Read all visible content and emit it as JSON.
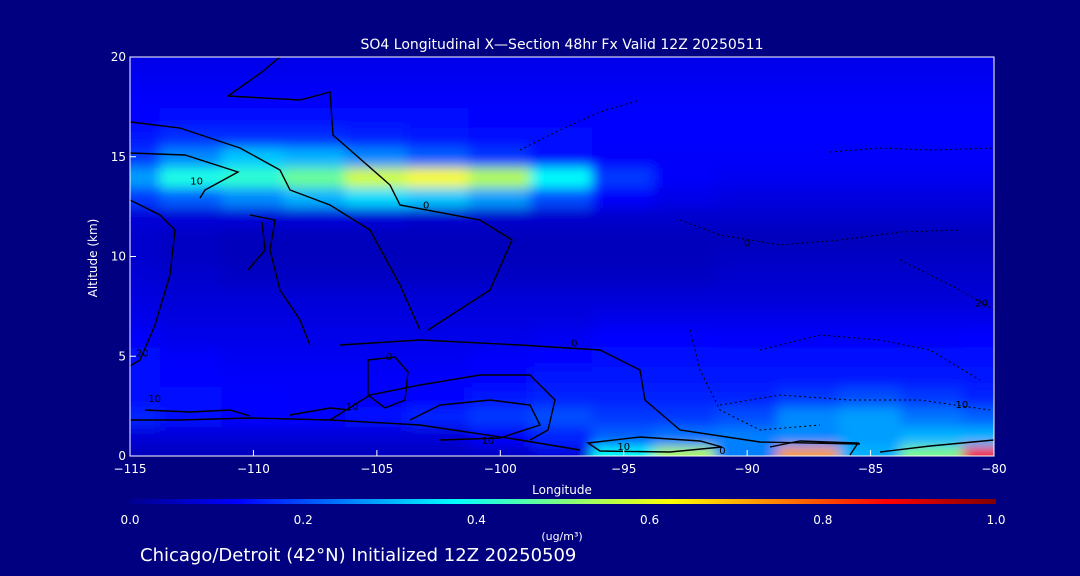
{
  "chart_data": {
    "type": "heatmap",
    "title": "SO4 Longitudinal X—Section 48hr  Fx Valid 12Z 20250511",
    "xlabel": "Longitude",
    "ylabel": "Altitude (km)",
    "xlim": [
      -115,
      -80
    ],
    "ylim": [
      0,
      20
    ],
    "x_ticks": [
      -115,
      -110,
      -105,
      -100,
      -95,
      -90,
      -85,
      -80
    ],
    "y_ticks": [
      0,
      5,
      10,
      15,
      20
    ],
    "colorbar": {
      "range": [
        0.0,
        1.0
      ],
      "ticks": [
        "0.0",
        "0.2",
        "0.4",
        "0.6",
        "0.8",
        "1.0"
      ],
      "units": "(ug/m³)"
    },
    "x": [
      -115,
      -112.5,
      -110,
      -107.5,
      -105,
      -102.5,
      -100,
      -97.5,
      -95,
      -92.5,
      -90,
      -87.5,
      -85,
      -82.5,
      -80
    ],
    "y": [
      0,
      1,
      2,
      3,
      4,
      5,
      6,
      7,
      8,
      9,
      10,
      11,
      12,
      13,
      14,
      15,
      16,
      17,
      18,
      19,
      20
    ],
    "z": [
      [
        0.05,
        0.05,
        0.05,
        0.05,
        0.05,
        0.05,
        0.05,
        0.08,
        0.38,
        0.55,
        0.25,
        0.72,
        0.3,
        0.5,
        0.88
      ],
      [
        0.08,
        0.08,
        0.08,
        0.08,
        0.08,
        0.08,
        0.12,
        0.16,
        0.22,
        0.24,
        0.25,
        0.26,
        0.28,
        0.3,
        0.3
      ],
      [
        0.16,
        0.14,
        0.13,
        0.13,
        0.14,
        0.16,
        0.18,
        0.2,
        0.18,
        0.18,
        0.2,
        0.26,
        0.28,
        0.24,
        0.22
      ],
      [
        0.14,
        0.14,
        0.13,
        0.12,
        0.12,
        0.13,
        0.15,
        0.16,
        0.16,
        0.16,
        0.16,
        0.18,
        0.2,
        0.18,
        0.16
      ],
      [
        0.14,
        0.13,
        0.12,
        0.12,
        0.12,
        0.12,
        0.13,
        0.15,
        0.15,
        0.15,
        0.15,
        0.15,
        0.15,
        0.15,
        0.15
      ],
      [
        0.14,
        0.12,
        0.11,
        0.11,
        0.11,
        0.11,
        0.12,
        0.13,
        0.14,
        0.14,
        0.14,
        0.14,
        0.14,
        0.14,
        0.14
      ],
      [
        0.12,
        0.1,
        0.1,
        0.1,
        0.1,
        0.1,
        0.1,
        0.11,
        0.13,
        0.13,
        0.12,
        0.12,
        0.12,
        0.12,
        0.13
      ],
      [
        0.1,
        0.09,
        0.09,
        0.09,
        0.09,
        0.09,
        0.09,
        0.09,
        0.1,
        0.1,
        0.1,
        0.1,
        0.1,
        0.1,
        0.1
      ],
      [
        0.09,
        0.08,
        0.08,
        0.08,
        0.08,
        0.08,
        0.08,
        0.08,
        0.08,
        0.08,
        0.08,
        0.08,
        0.08,
        0.08,
        0.08
      ],
      [
        0.08,
        0.07,
        0.06,
        0.06,
        0.06,
        0.06,
        0.06,
        0.06,
        0.06,
        0.06,
        0.07,
        0.07,
        0.07,
        0.07,
        0.07
      ],
      [
        0.07,
        0.06,
        0.05,
        0.05,
        0.05,
        0.05,
        0.05,
        0.05,
        0.05,
        0.05,
        0.06,
        0.06,
        0.06,
        0.06,
        0.06
      ],
      [
        0.07,
        0.06,
        0.05,
        0.05,
        0.05,
        0.05,
        0.05,
        0.05,
        0.05,
        0.05,
        0.05,
        0.05,
        0.05,
        0.05,
        0.05
      ],
      [
        0.08,
        0.08,
        0.08,
        0.08,
        0.08,
        0.07,
        0.07,
        0.07,
        0.07,
        0.07,
        0.07,
        0.07,
        0.07,
        0.07,
        0.07
      ],
      [
        0.18,
        0.22,
        0.26,
        0.3,
        0.34,
        0.32,
        0.28,
        0.2,
        0.12,
        0.1,
        0.09,
        0.09,
        0.09,
        0.09,
        0.09
      ],
      [
        0.28,
        0.4,
        0.42,
        0.48,
        0.58,
        0.62,
        0.55,
        0.38,
        0.18,
        0.12,
        0.11,
        0.11,
        0.11,
        0.11,
        0.11
      ],
      [
        0.18,
        0.26,
        0.32,
        0.3,
        0.26,
        0.22,
        0.18,
        0.14,
        0.12,
        0.12,
        0.12,
        0.12,
        0.12,
        0.12,
        0.12
      ],
      [
        0.15,
        0.17,
        0.17,
        0.17,
        0.16,
        0.15,
        0.14,
        0.14,
        0.13,
        0.13,
        0.13,
        0.13,
        0.13,
        0.13,
        0.13
      ],
      [
        0.13,
        0.14,
        0.14,
        0.14,
        0.14,
        0.14,
        0.13,
        0.13,
        0.13,
        0.13,
        0.13,
        0.13,
        0.13,
        0.13,
        0.13
      ],
      [
        0.12,
        0.12,
        0.12,
        0.12,
        0.12,
        0.12,
        0.12,
        0.12,
        0.12,
        0.12,
        0.12,
        0.12,
        0.12,
        0.12,
        0.12
      ],
      [
        0.11,
        0.11,
        0.11,
        0.11,
        0.11,
        0.11,
        0.11,
        0.11,
        0.11,
        0.11,
        0.11,
        0.11,
        0.11,
        0.11,
        0.11
      ],
      [
        0.1,
        0.1,
        0.1,
        0.1,
        0.1,
        0.1,
        0.1,
        0.1,
        0.1,
        0.1,
        0.1,
        0.1,
        0.1,
        0.1,
        0.1
      ]
    ],
    "contour_labels": [
      {
        "text": "10",
        "x": -112.3,
        "y": 13.6
      },
      {
        "text": "0",
        "x": -103.0,
        "y": 12.4
      },
      {
        "text": "0",
        "x": -90.0,
        "y": 10.5
      },
      {
        "text": "0",
        "x": -97.0,
        "y": 5.5
      },
      {
        "text": "0",
        "x": -104.5,
        "y": 4.8
      },
      {
        "text": "20",
        "x": -114.5,
        "y": 5.0
      },
      {
        "text": "10",
        "x": -114.0,
        "y": 2.7
      },
      {
        "text": "10",
        "x": -106.0,
        "y": 2.3
      },
      {
        "text": "10",
        "x": -100.5,
        "y": 0.6
      },
      {
        "text": "10",
        "x": -95.0,
        "y": 0.3
      },
      {
        "text": "0",
        "x": -91.0,
        "y": 0.1
      },
      {
        "text": "10",
        "x": -81.3,
        "y": 2.4
      },
      {
        "text": "20",
        "x": -80.5,
        "y": 7.5
      }
    ]
  },
  "footer": {
    "caption": "Chicago/Detroit (42°N) Initialized 12Z 20250509"
  }
}
